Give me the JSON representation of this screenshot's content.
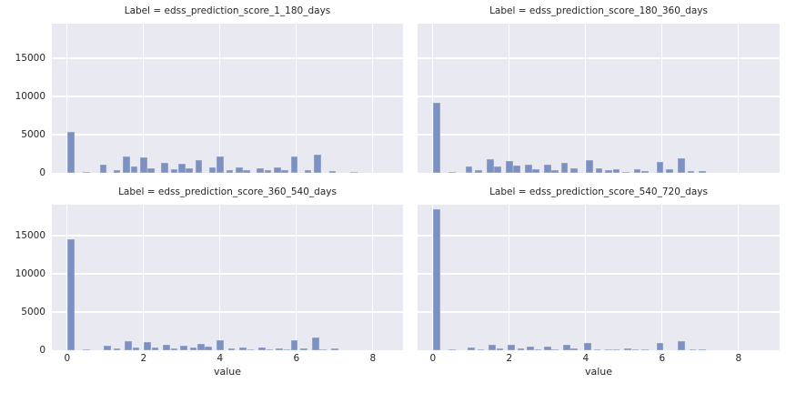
{
  "figure": {
    "xlabel": "value",
    "yticks": [
      "0",
      "5000",
      "10000",
      "15000"
    ],
    "ytick_values": [
      0,
      5000,
      10000,
      15000
    ],
    "xticks": [
      "0",
      "2",
      "4",
      "6",
      "8"
    ],
    "xtick_values": [
      0,
      2,
      4,
      6,
      8
    ],
    "colors": {
      "bar": "#7c90c1",
      "panel_bg": "#e9e9f1",
      "grid": "#ffffff",
      "text": "#262626"
    }
  },
  "chart_data": [
    {
      "type": "histogram",
      "title": "Label = edss_prediction_score_1_180_days",
      "xlabel": "value",
      "xlim": [
        -0.4,
        8.85
      ],
      "ylim": [
        0,
        19500
      ],
      "grid": true,
      "bin_width": 0.2,
      "bars": [
        [
          0.1,
          5400
        ],
        [
          0.5,
          180
        ],
        [
          0.95,
          1050
        ],
        [
          1.3,
          320
        ],
        [
          1.55,
          2150
        ],
        [
          1.75,
          800
        ],
        [
          2.0,
          2050
        ],
        [
          2.2,
          600
        ],
        [
          2.55,
          1300
        ],
        [
          2.8,
          500
        ],
        [
          3.0,
          1200
        ],
        [
          3.2,
          600
        ],
        [
          3.45,
          1700
        ],
        [
          3.8,
          700
        ],
        [
          4.0,
          2150
        ],
        [
          4.25,
          350
        ],
        [
          4.5,
          750
        ],
        [
          4.7,
          350
        ],
        [
          5.05,
          620
        ],
        [
          5.25,
          360
        ],
        [
          5.5,
          680
        ],
        [
          5.7,
          320
        ],
        [
          5.95,
          2100
        ],
        [
          6.3,
          360
        ],
        [
          6.55,
          2400
        ],
        [
          6.95,
          260
        ],
        [
          7.5,
          60
        ]
      ]
    },
    {
      "type": "histogram",
      "title": "Label = edss_prediction_score_180_360_days",
      "xlabel": "value",
      "xlim": [
        -0.4,
        8.85
      ],
      "ylim": [
        0,
        19500
      ],
      "grid": true,
      "bin_width": 0.2,
      "bars": [
        [
          0.1,
          9200
        ],
        [
          0.5,
          160
        ],
        [
          0.95,
          800
        ],
        [
          1.2,
          360
        ],
        [
          1.5,
          1800
        ],
        [
          1.7,
          820
        ],
        [
          2.0,
          1600
        ],
        [
          2.2,
          900
        ],
        [
          2.5,
          1100
        ],
        [
          2.7,
          520
        ],
        [
          3.0,
          1050
        ],
        [
          3.2,
          320
        ],
        [
          3.45,
          1300
        ],
        [
          3.7,
          560
        ],
        [
          4.1,
          1650
        ],
        [
          4.35,
          640
        ],
        [
          4.6,
          300
        ],
        [
          4.8,
          460
        ],
        [
          5.05,
          120
        ],
        [
          5.35,
          500
        ],
        [
          5.55,
          210
        ],
        [
          5.95,
          1450
        ],
        [
          6.2,
          460
        ],
        [
          6.5,
          1950
        ],
        [
          6.75,
          260
        ],
        [
          7.05,
          260
        ]
      ]
    },
    {
      "type": "histogram",
      "title": "Label = edss_prediction_score_360_540_days",
      "xlabel": "value",
      "xlim": [
        -0.4,
        8.85
      ],
      "ylim": [
        0,
        19500
      ],
      "grid": true,
      "bin_width": 0.2,
      "bars": [
        [
          0.1,
          14550
        ],
        [
          0.5,
          110
        ],
        [
          1.05,
          650
        ],
        [
          1.3,
          220
        ],
        [
          1.6,
          1200
        ],
        [
          1.8,
          320
        ],
        [
          2.1,
          1120
        ],
        [
          2.3,
          320
        ],
        [
          2.6,
          680
        ],
        [
          2.8,
          260
        ],
        [
          3.05,
          620
        ],
        [
          3.3,
          320
        ],
        [
          3.5,
          860
        ],
        [
          3.7,
          420
        ],
        [
          4.0,
          1300
        ],
        [
          4.3,
          260
        ],
        [
          4.6,
          380
        ],
        [
          4.8,
          120
        ],
        [
          5.1,
          320
        ],
        [
          5.3,
          120
        ],
        [
          5.55,
          260
        ],
        [
          5.75,
          110
        ],
        [
          5.95,
          1350
        ],
        [
          6.2,
          260
        ],
        [
          6.5,
          1680
        ],
        [
          6.7,
          160
        ],
        [
          7.0,
          260
        ]
      ]
    },
    {
      "type": "histogram",
      "title": "Label = edss_prediction_score_540_720_days",
      "xlabel": "value",
      "xlim": [
        -0.4,
        8.85
      ],
      "ylim": [
        0,
        19500
      ],
      "grid": true,
      "bin_width": 0.2,
      "bars": [
        [
          0.1,
          18400
        ],
        [
          0.5,
          90
        ],
        [
          1.0,
          380
        ],
        [
          1.25,
          110
        ],
        [
          1.55,
          720
        ],
        [
          1.75,
          260
        ],
        [
          2.05,
          720
        ],
        [
          2.3,
          210
        ],
        [
          2.55,
          420
        ],
        [
          2.75,
          160
        ],
        [
          3.0,
          520
        ],
        [
          3.2,
          130
        ],
        [
          3.5,
          680
        ],
        [
          3.7,
          210
        ],
        [
          4.05,
          950
        ],
        [
          4.3,
          90
        ],
        [
          4.6,
          160
        ],
        [
          4.8,
          60
        ],
        [
          5.1,
          210
        ],
        [
          5.3,
          70
        ],
        [
          5.55,
          160
        ],
        [
          5.95,
          1000
        ],
        [
          6.5,
          1250
        ],
        [
          6.8,
          110
        ],
        [
          7.05,
          110
        ]
      ]
    }
  ]
}
